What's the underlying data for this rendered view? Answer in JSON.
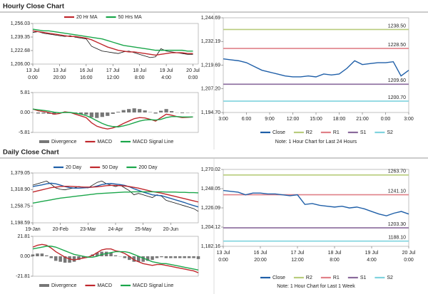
{
  "headers": [
    "Hourly Close Chart",
    "Daily Close Chart"
  ],
  "chart_data": [
    {
      "type": "line",
      "xlim": [
        0,
        31
      ],
      "xticks": [
        {
          "value": 0,
          "label": [
            "13 Jul",
            "0:00"
          ]
        },
        {
          "value": 5,
          "label": [
            "13 Jul",
            "20:00"
          ]
        },
        {
          "value": 10,
          "label": [
            "16 Jul",
            "16:00"
          ]
        },
        {
          "value": 15,
          "label": [
            "17 Jul",
            "12:00"
          ]
        },
        {
          "value": 20,
          "label": [
            "18 Jul",
            "8:00"
          ]
        },
        {
          "value": 25,
          "label": [
            "19 Jul",
            "4:00"
          ]
        },
        {
          "value": 30,
          "label": [
            "20 Jul",
            "0:00"
          ]
        }
      ],
      "ylim": [
        1206.0,
        1256.03
      ],
      "yticks": [
        {
          "value": 1206.0,
          "label": "1,206.00"
        },
        {
          "value": 1222.68,
          "label": "1,222.68"
        },
        {
          "value": 1239.35,
          "label": "1,239.35"
        },
        {
          "value": 1256.03,
          "label": "1,256.03"
        }
      ],
      "series": [
        {
          "color": "#111111",
          "values": [
            1245,
            1246,
            1244,
            1243,
            1242,
            1241,
            1240,
            1241,
            1239,
            1238,
            1237,
            1228,
            1225,
            1222,
            1221,
            1220,
            1219,
            1221,
            1222,
            1220,
            1218,
            1216,
            1214,
            1215,
            1225,
            1222,
            1221,
            1220,
            1219,
            1218,
            1218
          ]
        },
        {
          "name": "20 Hr MA",
          "color": "#c0282d",
          "values": [
            1247,
            1246,
            1245,
            1244,
            1243,
            1242,
            1241,
            1240,
            1240,
            1239,
            1238,
            1236,
            1233,
            1230,
            1227,
            1225,
            1223,
            1222,
            1221,
            1221,
            1220,
            1219,
            1218,
            1217,
            1218,
            1219,
            1220,
            1220,
            1220,
            1219,
            1219
          ]
        },
        {
          "name": "50 Hrs MA",
          "color": "#1aa64a",
          "values": [
            1249,
            1248,
            1247,
            1247,
            1246,
            1245,
            1244,
            1243,
            1242,
            1241,
            1240,
            1239,
            1238,
            1237,
            1235,
            1233,
            1231,
            1229,
            1228,
            1227,
            1226,
            1225,
            1224,
            1223,
            1223,
            1223,
            1223,
            1223,
            1223,
            1222,
            1222
          ]
        }
      ]
    },
    {
      "type": "line",
      "xlim": [
        0,
        31
      ],
      "ylim": [
        -5.81,
        5.81
      ],
      "yticks": [
        -5.81,
        {
          "value": 0,
          "label": "0.00"
        },
        5.81
      ],
      "series": [
        {
          "name": "Divergence",
          "style": "bar",
          "color": "#777777",
          "values": [
            0,
            -0.3,
            -0.3,
            -0.4,
            -0.6,
            -0.2,
            0.2,
            0,
            -0.3,
            -0.5,
            -0.6,
            -1.4,
            -1.6,
            -1.3,
            -1,
            -0.4,
            0.2,
            0.7,
            1,
            1.2,
            1,
            0.6,
            0.1,
            -0.3,
            0.5,
            1,
            0.4,
            0,
            -0.2,
            -0.1,
            0
          ]
        },
        {
          "name": "MACD",
          "color": "#c0282d",
          "values": [
            1,
            0.5,
            0.3,
            0,
            -0.5,
            -0.3,
            0.2,
            0,
            -0.5,
            -1,
            -1.5,
            -3,
            -4,
            -4.5,
            -4.8,
            -4.5,
            -4,
            -3.2,
            -2.5,
            -1.8,
            -1.5,
            -1.6,
            -2,
            -2.5,
            -1.5,
            -0.5,
            -0.8,
            -1.2,
            -1.5,
            -1.4,
            -1.3
          ]
        },
        {
          "name": "MACD Signal Line",
          "color": "#1aa64a",
          "values": [
            1,
            0.8,
            0.6,
            0.4,
            0.1,
            -0.1,
            0,
            0,
            -0.2,
            -0.5,
            -0.9,
            -1.6,
            -2.4,
            -3.2,
            -3.8,
            -4.1,
            -4.2,
            -3.9,
            -3.5,
            -3,
            -2.5,
            -2.2,
            -2.1,
            -2.2,
            -2,
            -1.5,
            -1.2,
            -1.2,
            -1.3,
            -1.3,
            -1.3
          ]
        }
      ]
    },
    {
      "type": "line",
      "xlim": [
        0,
        24
      ],
      "xticks": [
        {
          "value": 0,
          "label": "3:00"
        },
        {
          "value": 3,
          "label": "6:00"
        },
        {
          "value": 6,
          "label": "9:00"
        },
        {
          "value": 9,
          "label": "12:00"
        },
        {
          "value": 12,
          "label": "15:00"
        },
        {
          "value": 15,
          "label": "18:00"
        },
        {
          "value": 18,
          "label": "21:00"
        },
        {
          "value": 21,
          "label": "0:00"
        },
        {
          "value": 24,
          "label": "3:00"
        }
      ],
      "ylim": [
        1194.7,
        1244.69
      ],
      "yticks": [
        {
          "value": 1194.7,
          "label": "1,194.70"
        },
        {
          "value": 1207.2,
          "label": "1,207.20"
        },
        {
          "value": 1219.69,
          "label": "1,219.69"
        },
        {
          "value": 1232.19,
          "label": "1,232.19"
        },
        {
          "value": 1244.69,
          "label": "1,244.69"
        }
      ],
      "series": [
        {
          "name": "Close",
          "color": "#1f5fa8",
          "values": [
            1223,
            1222.5,
            1222,
            1221,
            1219,
            1217,
            1216,
            1215,
            1214,
            1213.5,
            1213.5,
            1214,
            1213.5,
            1215,
            1214.5,
            1215,
            1218,
            1222,
            1220,
            1220.5,
            1221,
            1221,
            1221.5,
            1214,
            1217
          ]
        }
      ],
      "levels": [
        {
          "name": "R2",
          "value": 1238.5,
          "label": "1238.50",
          "color": "#b8cc7c"
        },
        {
          "name": "R1",
          "value": 1228.5,
          "label": "1228.50",
          "color": "#e08088"
        },
        {
          "name": "S1",
          "value": 1209.6,
          "label": "1209.60",
          "color": "#8a6a9c"
        },
        {
          "name": "S2",
          "value": 1200.7,
          "label": "1200.70",
          "color": "#7fd3de"
        }
      ],
      "note": "Note: 1 Hour Chart for Last 24 Hours"
    },
    {
      "type": "line",
      "xlim": [
        0,
        36
      ],
      "xticks": [
        {
          "value": 0,
          "label": "19-Jan"
        },
        {
          "value": 6,
          "label": "20-Feb"
        },
        {
          "value": 12,
          "label": "23-Mar"
        },
        {
          "value": 18,
          "label": "24-Apr"
        },
        {
          "value": 24,
          "label": "25-May"
        },
        {
          "value": 30,
          "label": "20-Jun"
        }
      ],
      "ylim": [
        1198.59,
        1379.05
      ],
      "yticks": [
        {
          "value": 1198.59,
          "label": "1,198.59"
        },
        {
          "value": 1258.75,
          "label": "1,258.75"
        },
        {
          "value": 1318.9,
          "label": "1,318.90"
        },
        {
          "value": 1379.05,
          "label": "1,379.05"
        }
      ],
      "series": [
        {
          "color": "#111111",
          "values": [
            1335,
            1340,
            1345,
            1350,
            1338,
            1325,
            1320,
            1318,
            1322,
            1325,
            1330,
            1328,
            1325,
            1335,
            1345,
            1350,
            1340,
            1335,
            1330,
            1335,
            1325,
            1315,
            1300,
            1305,
            1300,
            1295,
            1290,
            1300,
            1295,
            1280,
            1275,
            1270,
            1265,
            1260,
            1255,
            1250,
            1240
          ]
        },
        {
          "name": "20 Day",
          "color": "#1f5fa8",
          "values": [
            1330,
            1333,
            1336,
            1340,
            1342,
            1340,
            1335,
            1330,
            1326,
            1324,
            1324,
            1325,
            1326,
            1328,
            1332,
            1337,
            1340,
            1341,
            1339,
            1337,
            1334,
            1329,
            1322,
            1316,
            1310,
            1305,
            1300,
            1298,
            1297,
            1292,
            1287,
            1282,
            1277,
            1272,
            1266,
            1261,
            1256
          ]
        },
        {
          "name": "50 Day",
          "color": "#c0282d",
          "values": [
            1310,
            1314,
            1318,
            1322,
            1326,
            1328,
            1330,
            1331,
            1331,
            1330,
            1329,
            1328,
            1328,
            1328,
            1329,
            1331,
            1333,
            1334,
            1334,
            1333,
            1332,
            1330,
            1327,
            1324,
            1320,
            1316,
            1312,
            1309,
            1306,
            1302,
            1298,
            1294,
            1290,
            1286,
            1282,
            1278,
            1274
          ]
        },
        {
          "name": "200 Day",
          "color": "#1aa64a",
          "values": [
            1270,
            1273,
            1276,
            1279,
            1282,
            1285,
            1288,
            1290,
            1292,
            1294,
            1296,
            1298,
            1300,
            1302,
            1304,
            1305,
            1306,
            1307,
            1308,
            1309,
            1310,
            1310,
            1311,
            1311,
            1311,
            1311,
            1311,
            1311,
            1311,
            1310,
            1310,
            1310,
            1309,
            1309,
            1308,
            1308,
            1307
          ]
        }
      ]
    },
    {
      "type": "line",
      "xlim": [
        0,
        36
      ],
      "ylim": [
        -21.81,
        21.81
      ],
      "yticks": [
        -21.81,
        {
          "value": 0,
          "label": "0.00"
        },
        21.81
      ],
      "series": [
        {
          "name": "Divergence",
          "style": "bar",
          "color": "#777777",
          "values": [
            2,
            3,
            3,
            1,
            -2,
            -5,
            -6,
            -7,
            -7,
            -6,
            -4,
            -2,
            0,
            2,
            4,
            5,
            5,
            4,
            1,
            0,
            -2,
            -4,
            -6,
            -6,
            -6,
            -5,
            -4,
            -2,
            -1,
            -2,
            -2,
            -2,
            -2,
            -2,
            -2,
            -2,
            -3
          ]
        },
        {
          "name": "MACD",
          "color": "#c0282d",
          "values": [
            10,
            12,
            13,
            12,
            9,
            5,
            2,
            -1,
            -3,
            -4,
            -3,
            -2,
            -1,
            1,
            4,
            7,
            8,
            8,
            6,
            5,
            3,
            0,
            -4,
            -6,
            -8,
            -9,
            -10,
            -9,
            -9,
            -10,
            -11,
            -12,
            -13,
            -14,
            -15,
            -16,
            -18
          ]
        },
        {
          "name": "MACD Signal Line",
          "color": "#1aa64a",
          "values": [
            8,
            9,
            10,
            11,
            11,
            10,
            8,
            6,
            4,
            2,
            1,
            0,
            -1,
            -1,
            0,
            2,
            3,
            4,
            5,
            5,
            5,
            4,
            2,
            0,
            -2,
            -4,
            -6,
            -7,
            -8,
            -8,
            -9,
            -10,
            -11,
            -12,
            -13,
            -14,
            -15
          ]
        }
      ]
    },
    {
      "type": "line",
      "xlim": [
        0,
        25
      ],
      "xticks": [
        {
          "value": 0,
          "label": [
            "13 Jul",
            "0:00"
          ]
        },
        {
          "value": 5,
          "label": [
            "16 Jul",
            "20:00"
          ]
        },
        {
          "value": 10,
          "label": [
            "17 Jul",
            "12:00"
          ]
        },
        {
          "value": 15,
          "label": [
            "18 Jul",
            "8:00"
          ]
        },
        {
          "value": 20,
          "label": [
            "19 Jul",
            "4:00"
          ]
        },
        {
          "value": 25,
          "label": [
            "20 Jul",
            "0:00"
          ]
        }
      ],
      "ylim": [
        1182.16,
        1270.02
      ],
      "yticks": [
        {
          "value": 1182.16,
          "label": "1,182.16"
        },
        {
          "value": 1204.12,
          "label": "1,204.12"
        },
        {
          "value": 1226.09,
          "label": "1,226.09"
        },
        {
          "value": 1248.05,
          "label": "1,248.05"
        },
        {
          "value": 1270.02,
          "label": "1,270.02"
        }
      ],
      "series": [
        {
          "name": "Close",
          "color": "#1f5fa8",
          "values": [
            1246,
            1245,
            1244,
            1241,
            1243,
            1243,
            1242,
            1242,
            1241,
            1240,
            1241,
            1230,
            1231,
            1229,
            1228,
            1227,
            1228,
            1226,
            1227,
            1225,
            1222,
            1219,
            1217,
            1220,
            1222,
            1219
          ]
        }
      ],
      "levels": [
        {
          "name": "R2",
          "value": 1263.7,
          "label": "1263.70",
          "color": "#b8cc7c"
        },
        {
          "name": "R1",
          "value": 1241.1,
          "label": "1241.10",
          "color": "#e08088"
        },
        {
          "name": "S1",
          "value": 1203.3,
          "label": "1203.30",
          "color": "#8a6a9c"
        },
        {
          "name": "S2",
          "value": 1188.1,
          "label": "1188.10",
          "color": "#7fd3de"
        }
      ],
      "note": "Note: 1 Hour Chart for Last 1 Week"
    }
  ]
}
